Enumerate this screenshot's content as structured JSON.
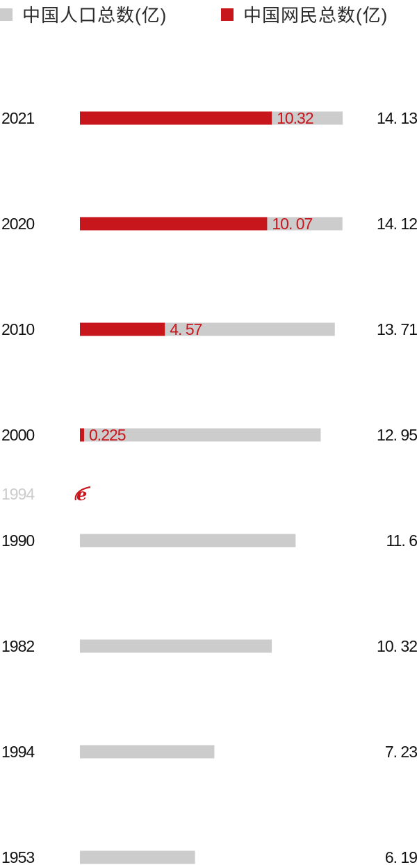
{
  "chart_data": {
    "type": "bar",
    "orientation": "horizontal",
    "categories": [
      "2021",
      "2020",
      "2010",
      "2000",
      "1990",
      "1982",
      "1994",
      "1953"
    ],
    "series": [
      {
        "name": "中国人口总数(亿)",
        "color": "#cccccc",
        "values": [
          14.13,
          14.12,
          13.71,
          12.95,
          11.6,
          10.32,
          7.23,
          6.19
        ],
        "value_labels": [
          "14. 13",
          "14. 12",
          "13. 71",
          "12. 95",
          "11. 6",
          "10. 32",
          "7. 23",
          "6. 19"
        ]
      },
      {
        "name": "中国网民总数(亿)",
        "color": "#c8161d",
        "values": [
          10.32,
          10.07,
          4.57,
          0.225,
          null,
          null,
          null,
          null
        ],
        "value_labels": [
          "10.32",
          "10. 07",
          "4. 57",
          "0.225",
          "",
          "",
          "",
          ""
        ]
      }
    ],
    "legend": "top-left",
    "grid": false,
    "annotation": {
      "year": "1994",
      "icon": "internet-explorer-icon"
    }
  },
  "legend_items": [
    {
      "label": "中国人口总数(亿)",
      "color": "#cccccc"
    },
    {
      "label": "中国网民总数(亿)",
      "color": "#c8161d"
    }
  ]
}
